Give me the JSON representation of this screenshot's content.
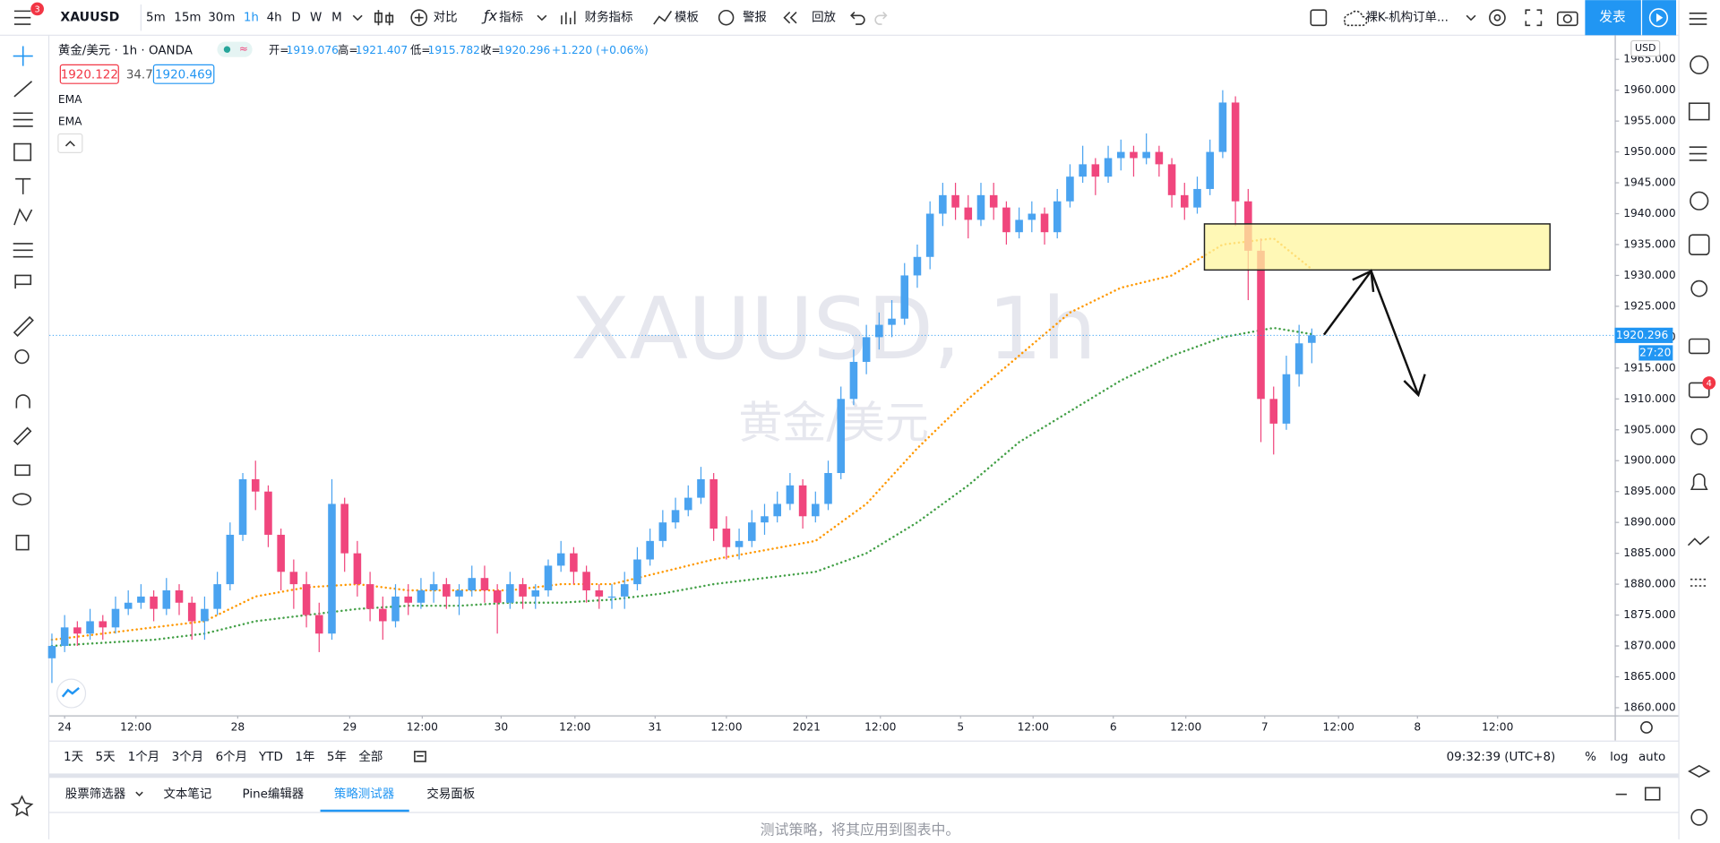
{
  "toolbar": {
    "badge": "3",
    "symbol": "XAUUSD",
    "intervals": [
      "5m",
      "15m",
      "30m",
      "1h",
      "4h",
      "D",
      "W",
      "M"
    ],
    "buttons": [
      "对比",
      "指标",
      "财务指标",
      "模板",
      "警报",
      "回放"
    ],
    "layout_name": "裸K-机构订单...",
    "publish": "发表"
  },
  "legend": {
    "title": "黄金/美元 · 1h · OANDA",
    "ohlc_labels": [
      "开=",
      "高=",
      "低=",
      "收="
    ],
    "change": "+1.220 (+0.06%)",
    "bid": 1920.122,
    "spread": 34.7,
    "ask": 1920.469
  },
  "watermark": {
    "symbol": "XAUUSD, 1h",
    "name": "黄金/美元"
  },
  "currency": "USD",
  "countdown": "27:20",
  "sidebar_badge": "4",
  "chart_data": {
    "type": "candlestick",
    "up_color": "#4aa3f0",
    "down_color": "#f0467d",
    "xlim": [
      -0.2,
      122.8
    ],
    "ylim": [
      1858.76,
      1968.9
    ],
    "grid": false,
    "xticks": [
      {
        "value": 1,
        "label": "24"
      },
      {
        "value": 6.6,
        "label": "12:00"
      },
      {
        "value": 14.6,
        "label": "28"
      },
      {
        "value": 23.4,
        "label": "29"
      },
      {
        "value": 29.1,
        "label": "12:00"
      },
      {
        "value": 35.3,
        "label": "30"
      },
      {
        "value": 41.1,
        "label": "12:00"
      },
      {
        "value": 47.4,
        "label": "31"
      },
      {
        "value": 53,
        "label": "12:00"
      },
      {
        "value": 59.3,
        "label": "2021"
      },
      {
        "value": 65.1,
        "label": "12:00"
      },
      {
        "value": 71.4,
        "label": "5"
      },
      {
        "value": 77.1,
        "label": "12:00"
      },
      {
        "value": 83.4,
        "label": "6"
      },
      {
        "value": 89.1,
        "label": "12:00"
      },
      {
        "value": 95.3,
        "label": "7"
      },
      {
        "value": 101.1,
        "label": "12:00"
      },
      {
        "value": 107.3,
        "label": "8"
      },
      {
        "value": 113.6,
        "label": "12:00"
      }
    ],
    "yticks": [
      {
        "value": 1860,
        "label": "1860.000"
      },
      {
        "value": 1865,
        "label": "1865.000"
      },
      {
        "value": 1870,
        "label": "1870.000"
      },
      {
        "value": 1875,
        "label": "1875.000"
      },
      {
        "value": 1880,
        "label": "1880.000"
      },
      {
        "value": 1885,
        "label": "1885.000"
      },
      {
        "value": 1890,
        "label": "1890.000"
      },
      {
        "value": 1895,
        "label": "1895.000"
      },
      {
        "value": 1900,
        "label": "1900.000"
      },
      {
        "value": 1905,
        "label": "1905.000"
      },
      {
        "value": 1910,
        "label": "1910.000"
      },
      {
        "value": 1915,
        "label": "1915.000"
      },
      {
        "value": 1920,
        "label": "1920.000"
      },
      {
        "value": 1925,
        "label": "1925.000"
      },
      {
        "value": 1930,
        "label": "1930.000"
      },
      {
        "value": 1935,
        "label": "1935.000"
      },
      {
        "value": 1940,
        "label": "1940.000"
      },
      {
        "value": 1945,
        "label": "1945.000"
      },
      {
        "value": 1950,
        "label": "1950.000"
      },
      {
        "value": 1955,
        "label": "1955.000"
      },
      {
        "value": 1960,
        "label": "1960.000"
      },
      {
        "value": 1965,
        "label": "1965.000"
      }
    ],
    "ohlc": [
      [
        1868,
        1872,
        1864,
        1870
      ],
      [
        1870,
        1875,
        1869,
        1873
      ],
      [
        1873,
        1874,
        1870,
        1872
      ],
      [
        1872,
        1876,
        1871,
        1874
      ],
      [
        1874,
        1875,
        1871,
        1873
      ],
      [
        1873,
        1878,
        1872,
        1876
      ],
      [
        1876,
        1879,
        1875,
        1877
      ],
      [
        1877,
        1880,
        1876,
        1878
      ],
      [
        1878,
        1879,
        1874,
        1876
      ],
      [
        1876,
        1881,
        1875,
        1879
      ],
      [
        1879,
        1880,
        1875,
        1877
      ],
      [
        1877,
        1878,
        1871,
        1874
      ],
      [
        1874,
        1878,
        1871,
        1876
      ],
      [
        1876,
        1882,
        1875,
        1880
      ],
      [
        1880,
        1890,
        1879,
        1888
      ],
      [
        1888,
        1898,
        1887,
        1897
      ],
      [
        1897,
        1900,
        1892,
        1895
      ],
      [
        1895,
        1896,
        1886,
        1888
      ],
      [
        1888,
        1889,
        1879,
        1882
      ],
      [
        1882,
        1884,
        1876,
        1880
      ],
      [
        1880,
        1882,
        1873,
        1875
      ],
      [
        1875,
        1877,
        1869,
        1872
      ],
      [
        1872,
        1897,
        1871,
        1893
      ],
      [
        1893,
        1894,
        1882,
        1885
      ],
      [
        1885,
        1887,
        1878,
        1880
      ],
      [
        1880,
        1882,
        1874,
        1876
      ],
      [
        1876,
        1878,
        1871,
        1874
      ],
      [
        1874,
        1880,
        1873,
        1878
      ],
      [
        1878,
        1880,
        1875,
        1877
      ],
      [
        1877,
        1881,
        1876,
        1879
      ],
      [
        1879,
        1882,
        1877,
        1880
      ],
      [
        1880,
        1881,
        1876,
        1878
      ],
      [
        1878,
        1880,
        1875,
        1879
      ],
      [
        1879,
        1883,
        1878,
        1881
      ],
      [
        1881,
        1883,
        1877,
        1879
      ],
      [
        1879,
        1880,
        1872,
        1877
      ],
      [
        1877,
        1882,
        1876,
        1880
      ],
      [
        1880,
        1881,
        1876,
        1878
      ],
      [
        1878,
        1880,
        1876,
        1879
      ],
      [
        1879,
        1884,
        1878,
        1883
      ],
      [
        1883,
        1887,
        1882,
        1885
      ],
      [
        1885,
        1886,
        1880,
        1882
      ],
      [
        1882,
        1883,
        1877,
        1879
      ],
      [
        1879,
        1880,
        1876,
        1878
      ],
      [
        1878,
        1880,
        1876,
        1878
      ],
      [
        1878,
        1882,
        1876,
        1880
      ],
      [
        1880,
        1886,
        1879,
        1884
      ],
      [
        1884,
        1889,
        1883,
        1887
      ],
      [
        1887,
        1892,
        1886,
        1890
      ],
      [
        1890,
        1894,
        1889,
        1892
      ],
      [
        1892,
        1896,
        1891,
        1894
      ],
      [
        1894,
        1899,
        1893,
        1897
      ],
      [
        1897,
        1898,
        1887,
        1889
      ],
      [
        1889,
        1891,
        1884,
        1886
      ],
      [
        1886,
        1889,
        1884,
        1887
      ],
      [
        1887,
        1892,
        1886,
        1890
      ],
      [
        1890,
        1893,
        1888,
        1891
      ],
      [
        1891,
        1895,
        1890,
        1893
      ],
      [
        1893,
        1898,
        1892,
        1896
      ],
      [
        1896,
        1897,
        1889,
        1891
      ],
      [
        1891,
        1895,
        1890,
        1893
      ],
      [
        1893,
        1900,
        1892,
        1898
      ],
      [
        1898,
        1912,
        1897,
        1910
      ],
      [
        1910,
        1918,
        1909,
        1916
      ],
      [
        1916,
        1922,
        1914,
        1920
      ],
      [
        1920,
        1924,
        1918,
        1922
      ],
      [
        1922,
        1926,
        1920,
        1923
      ],
      [
        1923,
        1932,
        1922,
        1930
      ],
      [
        1930,
        1935,
        1928,
        1933
      ],
      [
        1933,
        1942,
        1931,
        1940
      ],
      [
        1940,
        1945,
        1938,
        1943
      ],
      [
        1943,
        1945,
        1939,
        1941
      ],
      [
        1941,
        1943,
        1936,
        1939
      ],
      [
        1939,
        1945,
        1938,
        1943
      ],
      [
        1943,
        1945,
        1939,
        1941
      ],
      [
        1941,
        1942,
        1935,
        1937
      ],
      [
        1937,
        1941,
        1936,
        1939
      ],
      [
        1939,
        1942,
        1937,
        1940
      ],
      [
        1940,
        1941,
        1935,
        1937
      ],
      [
        1937,
        1944,
        1936,
        1942
      ],
      [
        1942,
        1948,
        1941,
        1946
      ],
      [
        1946,
        1951,
        1945,
        1948
      ],
      [
        1948,
        1949,
        1943,
        1946
      ],
      [
        1946,
        1951,
        1945,
        1949
      ],
      [
        1949,
        1952,
        1947,
        1950
      ],
      [
        1950,
        1951,
        1946,
        1949
      ],
      [
        1949,
        1953,
        1948,
        1950
      ],
      [
        1950,
        1951,
        1946,
        1948
      ],
      [
        1948,
        1949,
        1941,
        1943
      ],
      [
        1943,
        1945,
        1939,
        1941
      ],
      [
        1941,
        1946,
        1940,
        1944
      ],
      [
        1944,
        1952,
        1943,
        1950
      ],
      [
        1950,
        1960,
        1949,
        1958
      ],
      [
        1958,
        1959,
        1938,
        1942
      ],
      [
        1942,
        1944,
        1926,
        1934
      ],
      [
        1934,
        1936,
        1903,
        1910
      ],
      [
        1910,
        1912,
        1901,
        1906
      ],
      [
        1906,
        1917,
        1905,
        1914
      ],
      [
        1914,
        1922,
        1912,
        1919
      ],
      [
        1919.076,
        1921.407,
        1915.782,
        1920.296
      ]
    ],
    "series": [
      {
        "name": "EMA",
        "color": "#ff9800",
        "x": [
          0,
          4,
          8,
          12,
          16,
          20,
          24,
          28,
          32,
          36,
          40,
          44,
          48,
          52,
          56,
          60,
          64,
          68,
          72,
          76,
          80,
          84,
          88,
          92,
          96,
          99
        ],
        "values": [
          1871,
          1872,
          1873,
          1874,
          1878,
          1879.5,
          1880,
          1879,
          1879,
          1879,
          1880,
          1880,
          1882,
          1884,
          1885.5,
          1887,
          1893,
          1902,
          1910,
          1917,
          1924,
          1928,
          1930,
          1935,
          1936,
          1931
        ]
      },
      {
        "name": "EMA",
        "color": "#43a047",
        "x": [
          0,
          4,
          8,
          12,
          16,
          20,
          24,
          28,
          32,
          36,
          40,
          44,
          48,
          52,
          56,
          60,
          64,
          68,
          72,
          76,
          80,
          84,
          88,
          92,
          96,
          99
        ],
        "values": [
          1870,
          1870.5,
          1871,
          1872,
          1874,
          1875,
          1876,
          1876.5,
          1876.5,
          1877,
          1877,
          1877.5,
          1878.5,
          1880,
          1881,
          1882,
          1885,
          1890,
          1896,
          1903,
          1908,
          1913,
          1917,
          1920,
          1921.5,
          1920.5
        ]
      }
    ]
  },
  "bottom_bar": {
    "ranges": [
      "1天",
      "5天",
      "1个月",
      "3个月",
      "6个月",
      "YTD",
      "1年",
      "5年",
      "全部"
    ],
    "clock": "09:32:39 (UTC+8)",
    "scale_options": [
      "%",
      "log",
      "auto"
    ]
  },
  "tabs": {
    "items": [
      "股票筛选器",
      "文本笔记",
      "Pine编辑器",
      "策略测试器",
      "交易面板"
    ],
    "message": "测试策略，将其应用到图表中。"
  }
}
